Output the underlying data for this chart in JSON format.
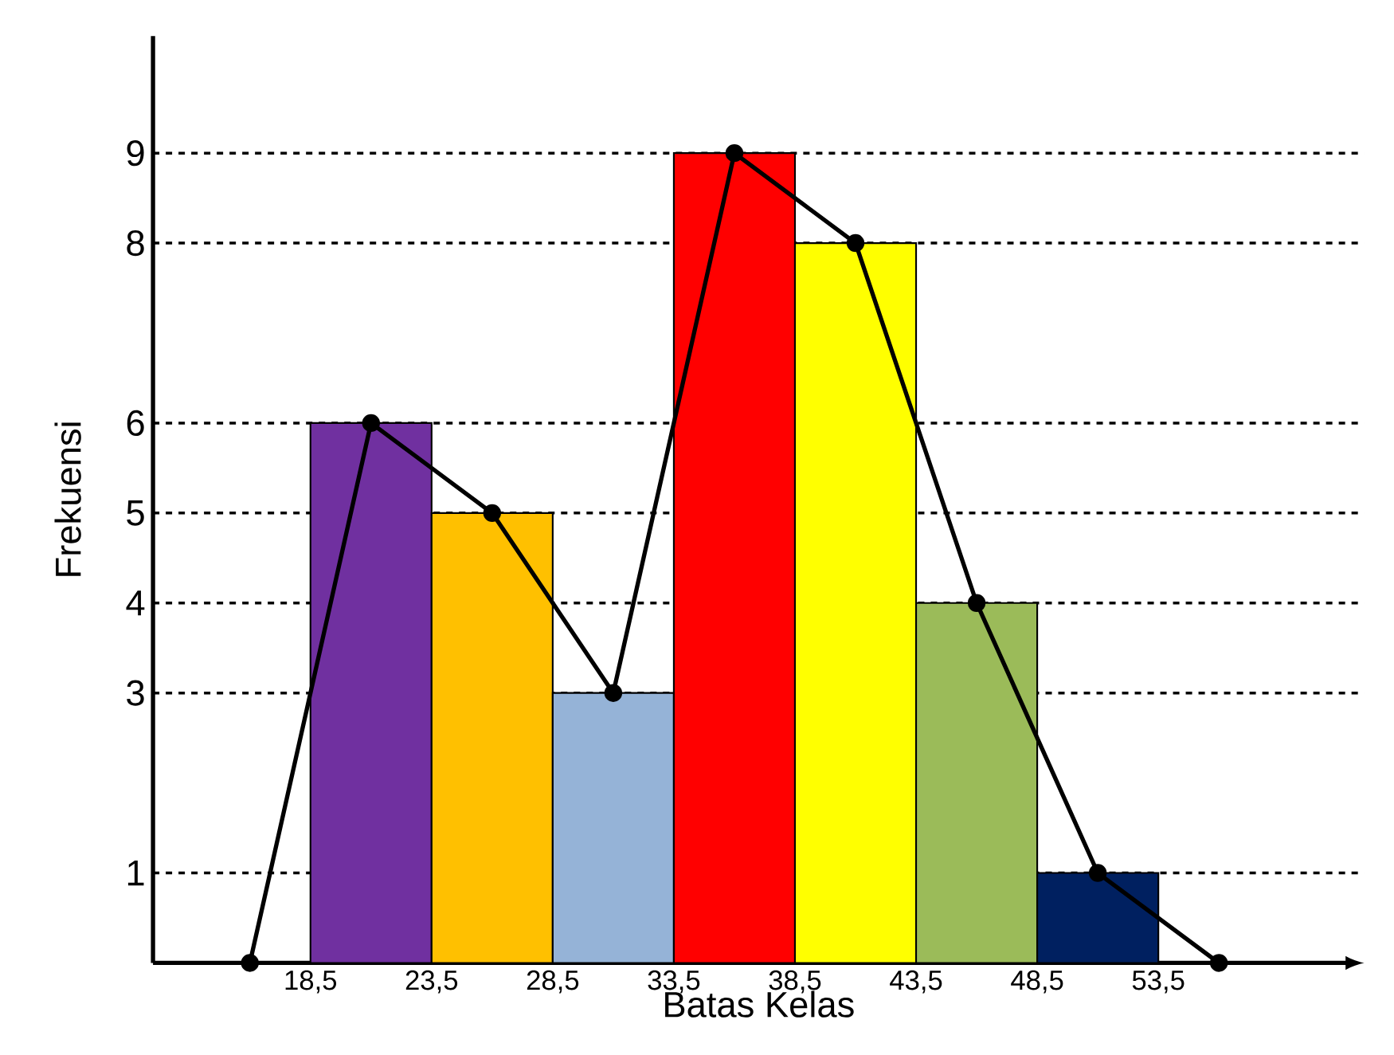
{
  "chart_data": {
    "type": "histogram",
    "xlabel": "Batas Kelas",
    "ylabel": "Frekuensi",
    "bins": [
      18.5,
      23.5,
      28.5,
      33.5,
      38.5,
      43.5,
      48.5,
      53.5
    ],
    "values": [
      6,
      5,
      3,
      9,
      8,
      4,
      1
    ],
    "colors": [
      "#7030a0",
      "#ffc000",
      "#95b3d7",
      "#ff0000",
      "#ffff00",
      "#9bbb59",
      "#002060"
    ],
    "series": [
      {
        "type": "line",
        "color": "#000000",
        "marker": "circle",
        "x": [
          16,
          21,
          26,
          31,
          36,
          41,
          46,
          51,
          56
        ],
        "values": [
          0,
          6,
          5,
          3,
          9,
          8,
          4,
          1,
          0
        ]
      }
    ],
    "xlim": [
      12,
      62
    ],
    "ylim": [
      0,
      10.3
    ],
    "xticks": [
      {
        "value": 18.5,
        "label": "18,5"
      },
      {
        "value": 23.5,
        "label": "23,5"
      },
      {
        "value": 28.5,
        "label": "28,5"
      },
      {
        "value": 33.5,
        "label": "33,5"
      },
      {
        "value": 38.5,
        "label": "38,5"
      },
      {
        "value": 43.5,
        "label": "43,5"
      },
      {
        "value": 48.5,
        "label": "48,5"
      },
      {
        "value": 53.5,
        "label": "53,5"
      }
    ],
    "yticks": [
      1,
      3,
      4,
      5,
      6,
      8,
      9
    ],
    "grid": "y"
  }
}
